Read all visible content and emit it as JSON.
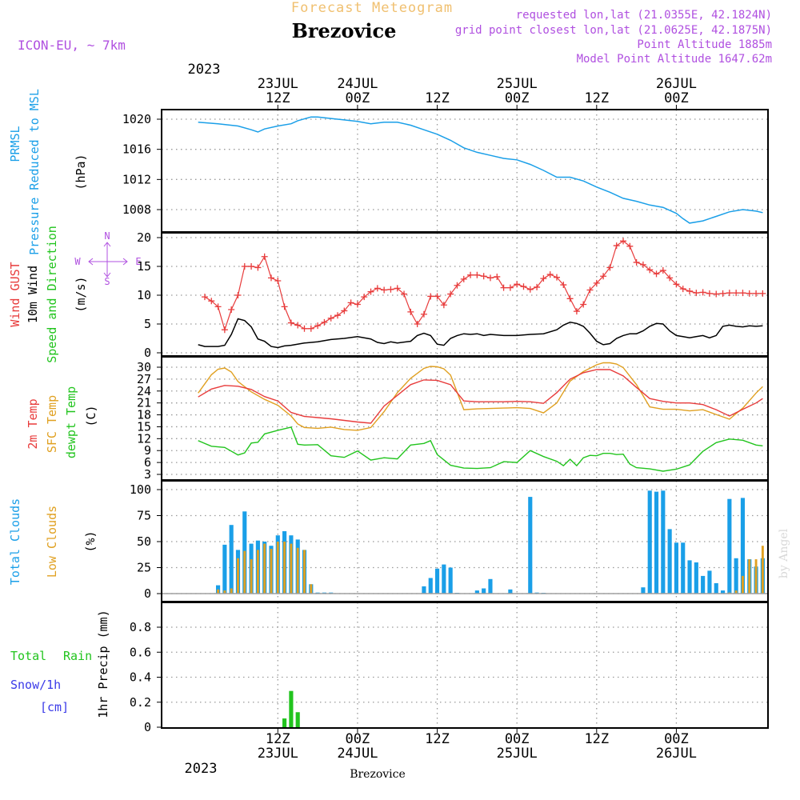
{
  "header": {
    "product": "Forecast Meteogram",
    "location": "Brezovice",
    "model": "ICON-EU, ~ 7km",
    "requested": "requested lon,lat (21.0355E, 42.1824N)",
    "gridpoint": "grid point closest lon,lat (21.0625E, 42.1875N)",
    "point_altitude": "Point Altitude 1885m",
    "model_altitude": "Model Point Altitude 1647.62m",
    "footer_location": "Brezovice",
    "watermark": "by Angel"
  },
  "colors": {
    "pressure": "#1a9fe8",
    "gust": "#e83c3c",
    "wind": "#000000",
    "temp2m": "#e83c3c",
    "sfc": "#e0a020",
    "dewpt": "#22c41e",
    "totalcloud": "#1a9fe8",
    "lowcloud": "#e0a020",
    "rain": "#22c41e",
    "snow": "#3a3ae8",
    "header_purple": "#b050e0",
    "header_orange": "#f0c070",
    "grid": "#999999"
  },
  "top_axis": {
    "year": "2023",
    "ticks": [
      {
        "h": 12,
        "l1": "23JUL",
        "l2": "12Z"
      },
      {
        "h": 24,
        "l1": "24JUL",
        "l2": "00Z"
      },
      {
        "h": 36,
        "l1": "",
        "l2": "12Z"
      },
      {
        "h": 48,
        "l1": "25JUL",
        "l2": "00Z"
      },
      {
        "h": 60,
        "l1": "",
        "l2": "12Z"
      },
      {
        "h": 72,
        "l1": "26JUL",
        "l2": "00Z"
      }
    ]
  },
  "bottom_axis": {
    "year": "2023",
    "ticks": [
      {
        "h": 12,
        "l1": "12Z",
        "l2": "23JUL"
      },
      {
        "h": 24,
        "l1": "00Z",
        "l2": "24JUL"
      },
      {
        "h": 36,
        "l1": "12Z",
        "l2": ""
      },
      {
        "h": 48,
        "l1": "00Z",
        "l2": "25JUL"
      },
      {
        "h": 60,
        "l1": "12Z",
        "l2": ""
      },
      {
        "h": 72,
        "l1": "00Z",
        "l2": "26JUL"
      }
    ]
  },
  "chart_data": [
    {
      "type": "line",
      "name": "pressure",
      "labels": [
        "PRMSL",
        "Pressure Reduced to MSL"
      ],
      "unit": "(hPa)",
      "x_unit": "hours from 23JUL 00Z",
      "ylim": [
        1005,
        1021
      ],
      "yticks": [
        1008,
        1012,
        1016,
        1020
      ],
      "series": [
        {
          "name": "PRMSL",
          "color_key": "pressure",
          "x": [
            0,
            3,
            6,
            8,
            9,
            10,
            12,
            14,
            15,
            17,
            18,
            20,
            22,
            24,
            26,
            28,
            30,
            32,
            34,
            36,
            38,
            40,
            42,
            44,
            46,
            48,
            50,
            52,
            54,
            56,
            58,
            60,
            62,
            64,
            66,
            68,
            70,
            72,
            73,
            74,
            76,
            78,
            80,
            82,
            84,
            85
          ],
          "y": [
            1019.6,
            1019.4,
            1019.1,
            1018.6,
            1018.3,
            1018.7,
            1019.1,
            1019.4,
            1019.8,
            1020.3,
            1020.3,
            1020.1,
            1019.9,
            1019.7,
            1019.4,
            1019.6,
            1019.6,
            1019.2,
            1018.6,
            1018.0,
            1017.2,
            1016.2,
            1015.6,
            1015.2,
            1014.8,
            1014.6,
            1014.0,
            1013.2,
            1012.3,
            1012.3,
            1011.8,
            1011.0,
            1010.3,
            1009.5,
            1009.1,
            1008.6,
            1008.3,
            1007.5,
            1006.8,
            1006.2,
            1006.5,
            1007.1,
            1007.7,
            1008.0,
            1007.8,
            1007.6
          ]
        }
      ]
    },
    {
      "type": "line",
      "name": "wind",
      "labels": [
        "Wind GUST",
        "10m Wind",
        "Speed and Direction"
      ],
      "unit": "(m/s)",
      "compass": {
        "n": "N",
        "s": "S",
        "e": "E",
        "w": "W"
      },
      "x_unit": "hours from 23JUL 00Z",
      "ylim": [
        0,
        21
      ],
      "yticks": [
        0,
        5,
        10,
        15,
        20
      ],
      "series": [
        {
          "name": "Wind GUST",
          "color_key": "gust",
          "x": [
            1,
            2,
            3,
            4,
            5,
            6,
            7,
            8,
            9,
            10,
            11,
            12,
            13,
            14,
            15,
            16,
            17,
            18,
            19,
            20,
            21,
            22,
            23,
            24,
            25,
            26,
            27,
            28,
            29,
            30,
            31,
            32,
            33,
            34,
            35,
            36,
            37,
            38,
            39,
            40,
            41,
            42,
            43,
            44,
            45,
            46,
            47,
            48,
            49,
            50,
            51,
            52,
            53,
            54,
            55,
            56,
            57,
            58,
            59,
            60,
            61,
            62,
            63,
            64,
            65,
            66,
            67,
            68,
            69,
            70,
            71,
            72,
            73,
            74,
            75,
            76,
            77,
            78,
            79,
            80,
            81,
            82,
            83,
            84,
            85
          ],
          "y": [
            9.7,
            9.0,
            8.0,
            4.0,
            7.5,
            10,
            15,
            15,
            14.8,
            16.7,
            13,
            12.5,
            8.0,
            5.2,
            4.8,
            4.2,
            4.2,
            4.7,
            5.3,
            6.0,
            6.5,
            7.3,
            8.7,
            8.4,
            9.7,
            10.6,
            11.2,
            10.9,
            11.0,
            11.2,
            10.2,
            7.1,
            5.0,
            6.7,
            9.8,
            9.8,
            8.3,
            10.2,
            11.7,
            12.8,
            13.5,
            13.5,
            13.3,
            13.0,
            13.2,
            11.3,
            11.3,
            11.9,
            11.5,
            11.0,
            11.4,
            12.9,
            13.6,
            13.1,
            11.8,
            9.4,
            7.2,
            8.4,
            10.9,
            12.1,
            13.3,
            14.8,
            18.6,
            19.4,
            18.5,
            15.7,
            15.3,
            14.4,
            13.7,
            14.3,
            13.0,
            11.9,
            11.1,
            10.7,
            10.4,
            10.5,
            10.3,
            10.2,
            10.3,
            10.4,
            10.4,
            10.4,
            10.3,
            10.3,
            10.3
          ]
        },
        {
          "name": "10m Wind",
          "color_key": "wind",
          "x": [
            0,
            1,
            3,
            4,
            5,
            6,
            7,
            8,
            9,
            10,
            11,
            12,
            13,
            14,
            16,
            18,
            20,
            22,
            24,
            26,
            27,
            28,
            29,
            30,
            32,
            33,
            34,
            35,
            36,
            37,
            38,
            39,
            40,
            41,
            42,
            43,
            44,
            46,
            48,
            50,
            52,
            54,
            55,
            56,
            57,
            58,
            59,
            60,
            61,
            62,
            63,
            64,
            65,
            66,
            67,
            68,
            69,
            70,
            71,
            72,
            73,
            74,
            75,
            76,
            77,
            78,
            79,
            80,
            81,
            82,
            83,
            84,
            85
          ],
          "y": [
            1.4,
            1.1,
            1.1,
            1.3,
            3.2,
            5.9,
            5.6,
            4.5,
            2.4,
            2.0,
            1.1,
            0.9,
            1.2,
            1.3,
            1.7,
            1.9,
            2.3,
            2.5,
            2.8,
            2.4,
            1.8,
            1.6,
            1.9,
            1.7,
            2.0,
            3.0,
            3.4,
            3.0,
            1.5,
            1.3,
            2.5,
            3.0,
            3.3,
            3.2,
            3.3,
            3.0,
            3.2,
            3.0,
            3.0,
            3.2,
            3.3,
            4.0,
            4.8,
            5.3,
            5.1,
            4.6,
            3.4,
            2.0,
            1.4,
            1.6,
            2.5,
            3.0,
            3.3,
            3.3,
            3.8,
            4.6,
            5.1,
            5.0,
            3.8,
            3.0,
            2.8,
            2.6,
            2.8,
            3.0,
            2.6,
            3.0,
            4.6,
            4.8,
            4.6,
            4.5,
            4.7,
            4.6,
            4.7
          ]
        }
      ]
    },
    {
      "type": "line",
      "name": "temperature",
      "labels": [
        "2m Temp",
        "SFC Temp",
        "dewpt Temp"
      ],
      "unit": "(C)",
      "x_unit": "hours from 23JUL 00Z",
      "ylim": [
        2,
        32
      ],
      "yticks": [
        3,
        6,
        9,
        12,
        15,
        18,
        21,
        24,
        27,
        30
      ],
      "series": [
        {
          "name": "2m Temp",
          "color_key": "temp2m",
          "x": [
            0,
            2,
            4,
            6,
            8,
            10,
            12,
            14,
            16,
            18,
            20,
            22,
            24,
            26,
            28,
            30,
            32,
            34,
            36,
            38,
            40,
            42,
            44,
            46,
            48,
            50,
            52,
            54,
            56,
            58,
            60,
            62,
            64,
            66,
            68,
            70,
            72,
            74,
            76,
            78,
            80,
            82,
            84,
            85
          ],
          "y": [
            22.5,
            24.5,
            25.4,
            25.2,
            24.4,
            22.6,
            21.5,
            18.6,
            17.6,
            17.3,
            17.0,
            16.6,
            16.2,
            15.9,
            20.2,
            22.9,
            25.6,
            26.8,
            26.7,
            25.6,
            21.5,
            21.3,
            21.3,
            21.3,
            21.4,
            21.3,
            20.9,
            23.6,
            27.0,
            28.6,
            29.4,
            29.4,
            27.8,
            24.9,
            22.1,
            21.4,
            21.0,
            21.0,
            20.6,
            19.3,
            17.7,
            19.4,
            21.0,
            22.1
          ]
        },
        {
          "name": "SFC Temp",
          "color_key": "sfc",
          "x": [
            0,
            1,
            2,
            3,
            4,
            5,
            6,
            8,
            10,
            12,
            14,
            15,
            16,
            18,
            20,
            22,
            24,
            26,
            28,
            30,
            32,
            34,
            35,
            36,
            37,
            38,
            40,
            42,
            44,
            46,
            48,
            50,
            52,
            54,
            56,
            58,
            60,
            61,
            62,
            63,
            64,
            66,
            68,
            70,
            72,
            74,
            76,
            78,
            80,
            82,
            84,
            85
          ],
          "y": [
            23.5,
            25.8,
            28.1,
            29.5,
            29.8,
            28.8,
            26.4,
            23.8,
            21.9,
            20.4,
            17.7,
            15.7,
            14.8,
            14.6,
            14.9,
            14.3,
            14.1,
            14.8,
            18.8,
            23.6,
            27.2,
            29.7,
            30.2,
            30.1,
            29.6,
            28.0,
            19.3,
            19.5,
            19.6,
            19.7,
            19.8,
            19.6,
            18.5,
            21.0,
            26.5,
            28.9,
            30.6,
            31.1,
            31.1,
            30.8,
            29.9,
            25.6,
            20.0,
            19.4,
            19.4,
            19.0,
            19.3,
            18.1,
            16.9,
            19.7,
            23.5,
            25.1
          ]
        },
        {
          "name": "dewpt Temp",
          "color_key": "dewpt",
          "x": [
            0,
            2,
            4,
            6,
            7,
            8,
            9,
            10,
            12,
            14,
            15,
            16,
            18,
            20,
            22,
            24,
            26,
            28,
            30,
            32,
            34,
            35,
            36,
            38,
            40,
            42,
            44,
            46,
            48,
            50,
            52,
            54,
            55,
            56,
            57,
            58,
            59,
            60,
            61,
            62,
            63,
            64,
            65,
            66,
            68,
            70,
            72,
            74,
            76,
            78,
            80,
            82,
            84,
            85
          ],
          "y": [
            11.5,
            10.1,
            9.8,
            7.9,
            8.4,
            10.9,
            11.1,
            13.2,
            14.1,
            14.9,
            10.6,
            10.4,
            10.5,
            7.7,
            7.3,
            8.9,
            6.6,
            7.2,
            6.9,
            10.4,
            10.8,
            11.5,
            8.0,
            5.3,
            4.6,
            4.5,
            4.7,
            6.2,
            6.0,
            9.0,
            7.5,
            6.3,
            5.2,
            6.8,
            5.2,
            7.2,
            7.8,
            7.7,
            8.3,
            8.3,
            8.0,
            8.1,
            5.6,
            4.7,
            4.4,
            3.8,
            4.3,
            5.4,
            8.8,
            11.0,
            11.9,
            11.6,
            10.4,
            10.2
          ]
        }
      ]
    },
    {
      "type": "bar",
      "name": "clouds",
      "labels": [
        "Total Clouds",
        "Low Clouds"
      ],
      "unit": "(%)",
      "x_unit": "hours from 23JUL 00Z",
      "ylim": [
        -5,
        105
      ],
      "yticks": [
        0,
        25,
        50,
        75,
        100
      ],
      "series": [
        {
          "name": "Total Clouds",
          "color_key": "totalcloud",
          "x": [
            3,
            4,
            5,
            6,
            7,
            8,
            9,
            10,
            11,
            12,
            13,
            14,
            15,
            16,
            17,
            18,
            19,
            20,
            34,
            35,
            36,
            37,
            38,
            39,
            42,
            43,
            44,
            47,
            50,
            51,
            52,
            67,
            68,
            69,
            70,
            71,
            72,
            73,
            74,
            75,
            76,
            77,
            78,
            79,
            80,
            81,
            82,
            83,
            84,
            85
          ],
          "y": [
            8,
            47,
            66,
            42,
            79,
            48,
            51,
            50,
            46,
            56,
            60,
            56,
            52,
            42,
            9,
            1,
            1,
            1,
            7,
            15,
            24,
            28,
            25,
            0,
            3,
            5,
            14,
            4,
            93,
            1,
            0,
            6,
            99,
            98,
            99,
            62,
            49,
            49,
            32,
            30,
            17,
            22,
            10,
            3,
            91,
            34,
            92,
            33,
            26,
            34
          ]
        },
        {
          "name": "Low Clouds",
          "color_key": "lowcloud",
          "x": [
            3,
            4,
            5,
            6,
            7,
            8,
            9,
            10,
            11,
            12,
            13,
            14,
            15,
            16,
            17,
            80,
            81,
            82,
            83,
            84,
            85
          ],
          "y": [
            4,
            3,
            5,
            34,
            41,
            33,
            42,
            48,
            43,
            50,
            50,
            48,
            44,
            42,
            9,
            1,
            3,
            17,
            33,
            33,
            46
          ]
        }
      ]
    },
    {
      "type": "bar",
      "name": "precip",
      "labels": [
        "Total",
        "Rain",
        "Snow/1h",
        "[cm]"
      ],
      "unit": "1hr Precip (mm)",
      "x_unit": "hours from 23JUL 00Z",
      "ylim": [
        0,
        1.0
      ],
      "yticks": [
        "0",
        "0.2",
        "0.4",
        "0.6",
        "0.8"
      ],
      "series": [
        {
          "name": "Rain",
          "color_key": "rain",
          "x": [
            13,
            14,
            15
          ],
          "y": [
            0.07,
            0.29,
            0.12
          ]
        }
      ]
    }
  ]
}
